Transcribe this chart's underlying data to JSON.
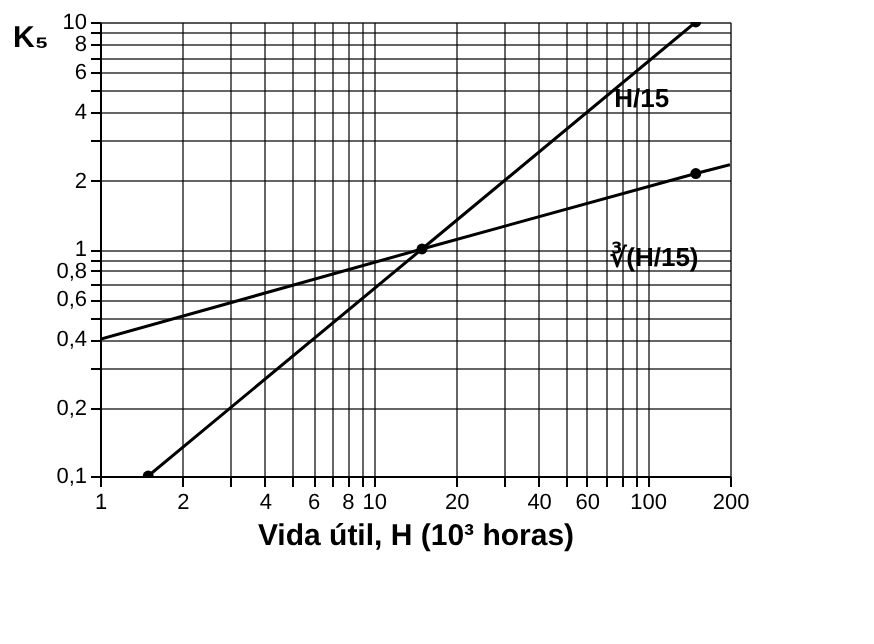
{
  "chart_data": {
    "type": "line",
    "log": "xy",
    "xlabel": "Vida útil, H (10³ horas)",
    "ylabel": "K₅",
    "xlim": [
      1,
      200
    ],
    "ylim": [
      0.1,
      10
    ],
    "xticks": [
      1,
      2,
      {
        "value": 3,
        "label": null
      },
      4,
      {
        "value": 5,
        "label": null
      },
      6,
      {
        "value": 7,
        "label": null
      },
      8,
      {
        "value": 9,
        "label": null
      },
      10,
      20,
      {
        "value": 30,
        "label": null
      },
      40,
      {
        "value": 50,
        "label": null
      },
      60,
      {
        "value": 70,
        "label": null
      },
      {
        "value": 80,
        "label": null
      },
      {
        "value": 90,
        "label": null
      },
      100,
      200
    ],
    "yticks": [
      {
        "value": 0.1,
        "label": "0,1"
      },
      {
        "value": 0.2,
        "label": "0,2"
      },
      {
        "value": 0.3,
        "label": null
      },
      {
        "value": 0.4,
        "label": "0,4"
      },
      {
        "value": 0.5,
        "label": null
      },
      {
        "value": 0.6,
        "label": "0,6"
      },
      {
        "value": 0.7,
        "label": null
      },
      {
        "value": 0.8,
        "label": "0,8"
      },
      {
        "value": 0.9,
        "label": null
      },
      1,
      2,
      {
        "value": 3,
        "label": null
      },
      4,
      {
        "value": 5,
        "label": null
      },
      6,
      {
        "value": 7,
        "label": null
      },
      8,
      {
        "value": 9,
        "label": null
      },
      10
    ],
    "grid": true,
    "series": [
      {
        "color": "#000000",
        "x": [
          1.5,
          15,
          150
        ],
        "values": [
          0.1,
          1,
          10
        ],
        "marker": "circle"
      },
      {
        "color": "#000000",
        "x": [
          1,
          15,
          150,
          200
        ],
        "values": [
          0.4,
          1,
          2.15,
          2.35
        ],
        "marker": "none"
      },
      {
        "type": "scatter",
        "color": "#000000",
        "x": [
          150
        ],
        "values": [
          2.15
        ],
        "marker": "circle"
      }
    ],
    "annotations": [
      "H/15",
      "∛(H/15)"
    ]
  }
}
